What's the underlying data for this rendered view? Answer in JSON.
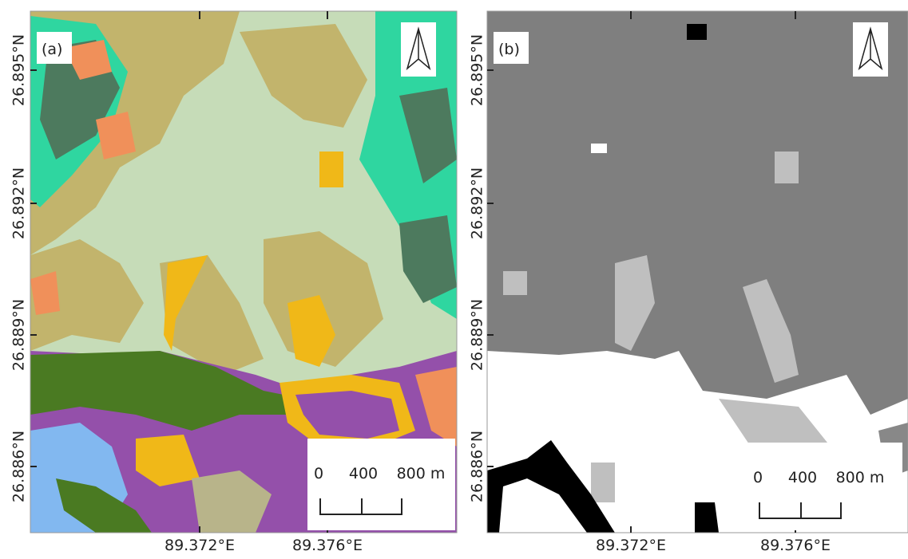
{
  "panels": [
    {
      "label": "(a)",
      "lat_ticks": [
        "26.895°N",
        "26.892°N",
        "26.889°N",
        "26.886°N"
      ],
      "lon_ticks": [
        "89.372°E",
        "89.376°E"
      ],
      "scale": [
        "0",
        "400",
        "800 m"
      ]
    },
    {
      "label": "(b)",
      "lat_ticks": [
        "26.895°N",
        "26.892°N",
        "26.889°N",
        "26.886°N"
      ],
      "lon_ticks": [
        "89.372°E",
        "89.376°E"
      ],
      "scale": [
        "0",
        "400",
        "800 m"
      ]
    }
  ]
}
